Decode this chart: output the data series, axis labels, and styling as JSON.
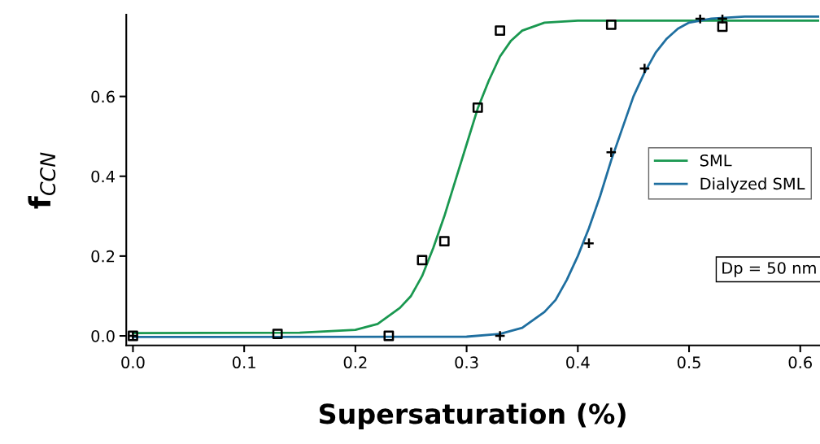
{
  "chart_data": {
    "type": "line",
    "xlabel": "Supersaturation (%)",
    "ylabel": "f$_{CCN}$",
    "xlim": [
      -0.006,
      0.617
    ],
    "ylim": [
      -0.024,
      0.805
    ],
    "xticks": [
      {
        "value": 0,
        "label": "0.0"
      },
      0.1,
      0.2,
      0.3,
      0.4,
      0.5,
      0.6
    ],
    "yticks": [
      {
        "value": 0,
        "label": "0.0"
      },
      0.2,
      0.4,
      0.6
    ],
    "grid": false,
    "legend": "right",
    "line_style": "solid",
    "annotations": [
      "Dp = 50 nm"
    ],
    "series": [
      {
        "name": "SML",
        "color": "#1a9850",
        "marker": "none",
        "x": [
          0,
          0.15,
          0.2,
          0.22,
          0.24,
          0.25,
          0.26,
          0.27,
          0.28,
          0.29,
          0.3,
          0.31,
          0.32,
          0.33,
          0.34,
          0.35,
          0.37,
          0.4,
          0.5,
          0.617
        ],
        "values": [
          0.007,
          0.008,
          0.015,
          0.03,
          0.07,
          0.1,
          0.15,
          0.22,
          0.3,
          0.39,
          0.48,
          0.57,
          0.64,
          0.7,
          0.74,
          0.765,
          0.785,
          0.79,
          0.79,
          0.79
        ]
      },
      {
        "name": "Dialyzed SML",
        "color": "#1f6fa0",
        "marker": "none",
        "x": [
          0,
          0.3,
          0.33,
          0.35,
          0.37,
          0.38,
          0.39,
          0.4,
          0.41,
          0.42,
          0.43,
          0.44,
          0.45,
          0.46,
          0.47,
          0.48,
          0.49,
          0.5,
          0.52,
          0.55,
          0.617
        ],
        "values": [
          -0.003,
          -0.002,
          0.005,
          0.02,
          0.06,
          0.09,
          0.14,
          0.2,
          0.27,
          0.35,
          0.44,
          0.52,
          0.6,
          0.66,
          0.71,
          0.745,
          0.77,
          0.785,
          0.795,
          0.8,
          0.8
        ]
      },
      {
        "type": "scatter",
        "color": "#000000",
        "marker": "square",
        "x": [
          0,
          0.13,
          0.23,
          0.26,
          0.28,
          0.31,
          0.33,
          0.43,
          0.53
        ],
        "values": [
          0,
          0.005,
          0,
          0.19,
          0.237,
          0.572,
          0.765,
          0.78,
          0.775
        ]
      },
      {
        "type": "scatter",
        "color": "#000000",
        "marker": "cross",
        "x": [
          0,
          0.33,
          0.41,
          0.43,
          0.46,
          0.51,
          0.53
        ],
        "values": [
          0,
          0,
          0.232,
          0.46,
          0.67,
          0.795,
          0.795
        ]
      }
    ]
  }
}
